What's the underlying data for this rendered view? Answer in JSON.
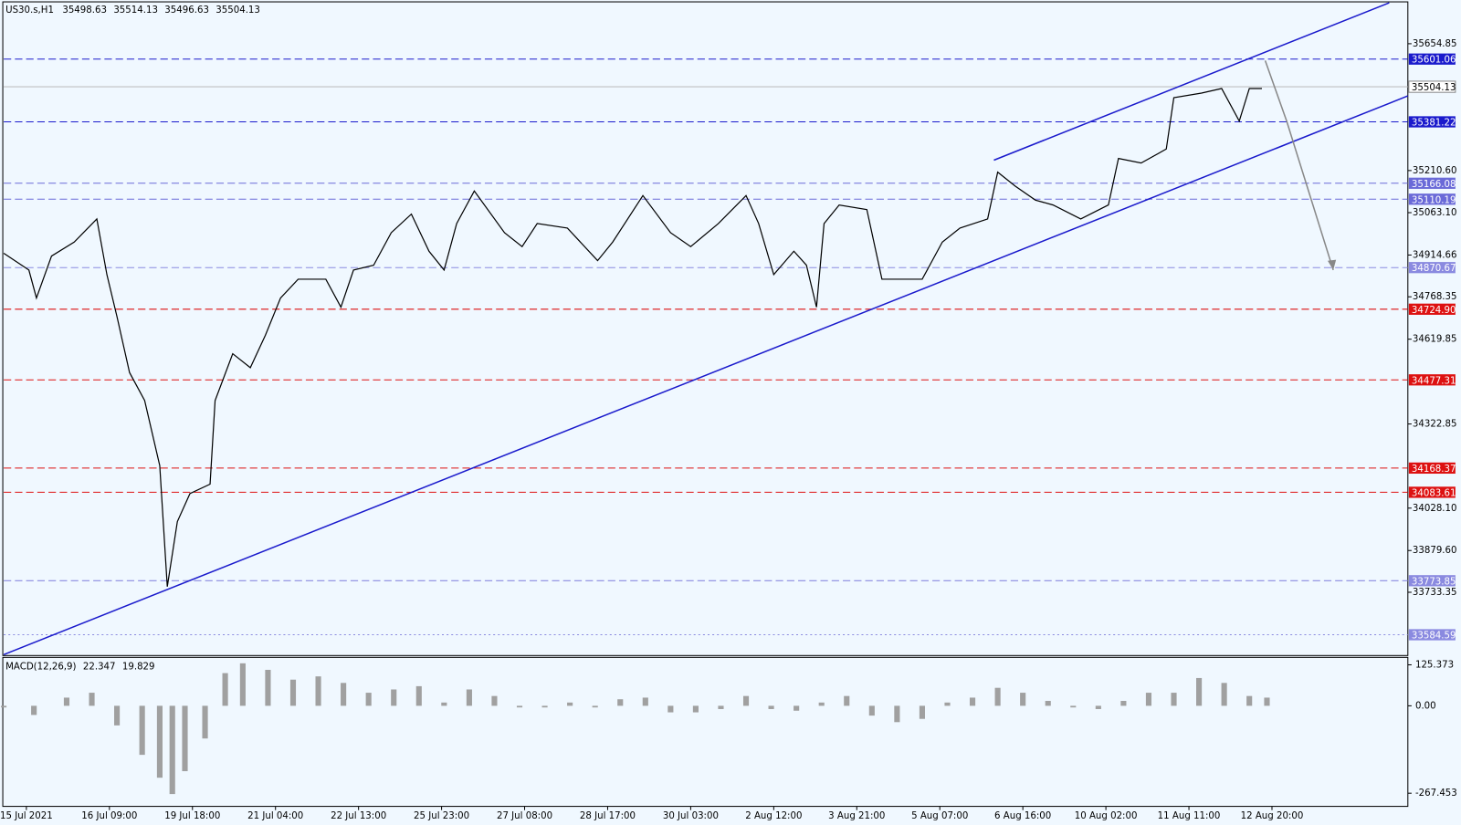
{
  "chart_data": {
    "type": "line",
    "title": "US30.s,H1",
    "ohlc": [
      35498.63,
      35514.13,
      35496.63,
      35504.13
    ],
    "color": "#000000",
    "x": [
      0,
      10,
      13,
      19,
      28,
      37,
      41,
      45,
      50,
      56,
      62,
      65,
      69,
      74,
      82,
      84,
      91,
      98,
      104,
      110,
      117,
      128,
      134,
      139,
      147,
      154,
      162,
      169,
      175,
      180,
      187,
      199,
      206,
      212,
      224,
      236,
      242,
      254,
      265,
      273,
      284,
      295,
      300,
      306,
      314,
      319,
      323,
      326,
      332,
      343,
      349,
      356,
      365,
      373,
      380,
      391,
      395,
      402,
      410,
      417,
      428,
      439,
      443,
      452,
      462,
      465,
      476,
      484,
      491,
      495,
      500
    ],
    "values": [
      34921,
      34862,
      34764,
      34911,
      34960,
      35041,
      34846,
      34699,
      34503,
      34405,
      34177,
      33753,
      33981,
      34079,
      34112,
      34405,
      34569,
      34520,
      34634,
      34764,
      34830,
      34830,
      34732,
      34862,
      34879,
      34993,
      35058,
      34928,
      34862,
      35025,
      35139,
      34993,
      34944,
      35025,
      35009,
      34895,
      34960,
      35123,
      34993,
      34944,
      35025,
      35123,
      35025,
      34846,
      34928,
      34879,
      34732,
      35025,
      35090,
      35074,
      34830,
      34830,
      34830,
      34960,
      35009,
      35041,
      35205,
      35156,
      35107,
      35090,
      35041,
      35090,
      35253,
      35237,
      35286,
      35466,
      35482,
      35498,
      35384,
      35498,
      35498
    ],
    "xlim": [
      0,
      558
    ],
    "ylim": [
      33515,
      35808
    ],
    "yticks": [
      35654.85,
      {
        "value": 35210.6,
        "label": "35210.60"
      },
      {
        "value": 35063.1,
        "label": "35063.10"
      },
      34914.66,
      34768.35,
      34619.85,
      34322.85,
      {
        "value": 34028.1,
        "label": "34028.10"
      },
      {
        "value": 33879.6,
        "label": "33879.60"
      },
      33733.35
    ],
    "xticks": [
      {
        "value": 9,
        "label": "15 Jul 2021"
      },
      {
        "value": 42,
        "label": "16 Jul 09:00"
      },
      {
        "value": 75,
        "label": "19 Jul 18:00"
      },
      {
        "value": 108,
        "label": "21 Jul 04:00"
      },
      {
        "value": 141,
        "label": "22 Jul 13:00"
      },
      {
        "value": 174,
        "label": "25 Jul 23:00"
      },
      {
        "value": 207,
        "label": "27 Jul 08:00"
      },
      {
        "value": 240,
        "label": "28 Jul 17:00"
      },
      {
        "value": 273,
        "label": "30 Jul 03:00"
      },
      {
        "value": 306,
        "label": "2 Aug 12:00"
      },
      {
        "value": 339,
        "label": "3 Aug 21:00"
      },
      {
        "value": 372,
        "label": "5 Aug 07:00"
      },
      {
        "value": 405,
        "label": "6 Aug 16:00"
      },
      {
        "value": 438,
        "label": "10 Aug 02:00"
      },
      {
        "value": 471,
        "label": "11 Aug 11:00"
      },
      {
        "value": 504,
        "label": "12 Aug 20:00"
      }
    ],
    "levels": [
      {
        "value": 35601.06,
        "color": "#1a1acc",
        "style": "dashed"
      },
      {
        "value": 35504.13,
        "color": "#c0c0c0",
        "style": "solid"
      },
      {
        "value": 35381.22,
        "color": "#1a1acc",
        "style": "dashed"
      },
      {
        "value": 35166.08,
        "color": "#6a6ad8",
        "style": "dashed"
      },
      {
        "value": 35110.19,
        "color": "#6a6ad8",
        "style": "dashed"
      },
      {
        "value": 34870.67,
        "color": "#8a8ae0",
        "style": "dashed"
      },
      {
        "value": 34724.9,
        "label": "34724.90",
        "color": "#dd1111",
        "style": "dashed"
      },
      {
        "value": 34477.31,
        "color": "#dd1111",
        "style": "dashed"
      },
      {
        "value": 34168.37,
        "color": "#dd1111",
        "style": "dashed"
      },
      {
        "value": 34083.61,
        "color": "#dd1111",
        "style": "dashed"
      },
      {
        "value": 33773.85,
        "color": "#8a8ae0",
        "style": "dashed"
      },
      {
        "value": 33584.59,
        "color": "#8a8ae0",
        "style": "dotted"
      }
    ],
    "macd": {
      "type": "bar",
      "title": "MACD(12,26,9)",
      "indicator_values": [
        22.347,
        19.829
      ],
      "color": "#a0a0a0",
      "x": [
        0,
        12,
        25,
        35,
        45,
        55,
        62,
        67,
        72,
        80,
        88,
        95,
        105,
        115,
        125,
        135,
        145,
        155,
        165,
        175,
        185,
        195,
        205,
        215,
        225,
        235,
        245,
        255,
        265,
        275,
        285,
        295,
        305,
        315,
        325,
        335,
        345,
        355,
        365,
        375,
        385,
        395,
        405,
        415,
        425,
        435,
        445,
        455,
        465,
        475,
        485,
        495,
        502
      ],
      "values": [
        -5,
        -28,
        25,
        40,
        -60,
        -150,
        -220,
        -270,
        -200,
        -100,
        100,
        130,
        110,
        80,
        90,
        70,
        40,
        50,
        60,
        10,
        50,
        30,
        -5,
        -5,
        10,
        -5,
        20,
        25,
        -20,
        -20,
        -10,
        30,
        -10,
        -15,
        10,
        30,
        -30,
        -50,
        -40,
        10,
        25,
        55,
        40,
        15,
        -5,
        -10,
        15,
        40,
        40,
        85,
        70,
        30,
        25
      ],
      "ylim": [
        -307.7,
        148.1
      ],
      "yticks": [
        125.373,
        {
          "value": 0,
          "label": "0.00"
        },
        -267.453
      ]
    }
  }
}
